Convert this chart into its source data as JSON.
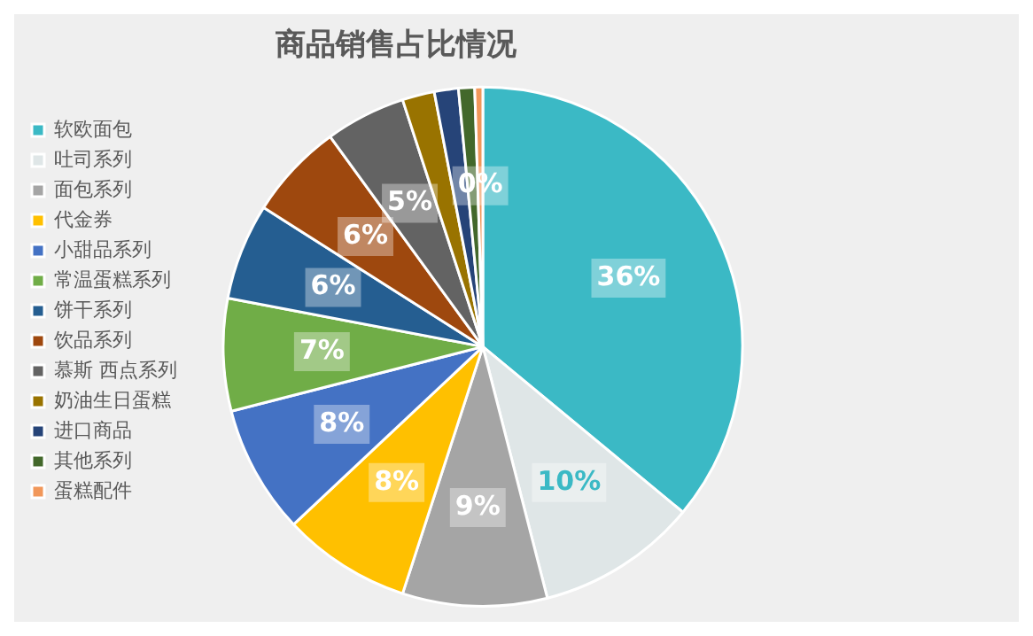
{
  "chart_data": {
    "type": "pie",
    "title": "商品销售占比情况",
    "categories": [
      "软欧面包",
      "吐司系列",
      "面包系列",
      "代金券",
      "小甜品系列",
      "常温蛋糕系列",
      "饼干系列",
      "饮品系列",
      "慕斯 西点系列",
      "奶油生日蛋糕",
      "进口商品",
      "其他系列",
      "蛋糕配件"
    ],
    "values": [
      36,
      10,
      9,
      8,
      8,
      7,
      6,
      6,
      5,
      2,
      1.5,
      1,
      0.5
    ],
    "colors": [
      "#3bb9c5",
      "#dfe6e7",
      "#a5a5a5",
      "#ffc000",
      "#4472c4",
      "#70ad47",
      "#255e91",
      "#9e480e",
      "#636363",
      "#997300",
      "#264478",
      "#43682b",
      "#f1975a"
    ],
    "value_labels": [
      "36%",
      "10%",
      "9%",
      "8%",
      "8%",
      "7%",
      "6%",
      "6%",
      "5%",
      null,
      null,
      null,
      "0%"
    ],
    "legend": "left"
  }
}
